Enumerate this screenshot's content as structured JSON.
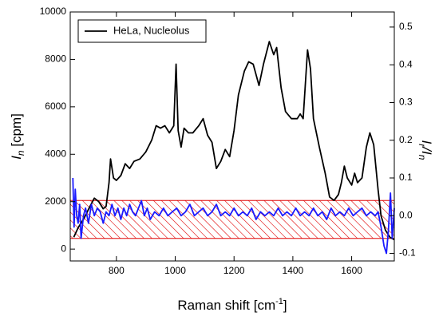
{
  "chart_data": {
    "type": "line",
    "x_label": [
      "Raman shift [cm",
      "-1",
      "]"
    ],
    "y_label": [
      "I",
      "n",
      " [cpm]"
    ],
    "y2_label": [
      "I",
      "r",
      "/I",
      "n"
    ],
    "xlim": [
      643,
      1745
    ],
    "xticks": [
      800,
      1000,
      1200,
      1400,
      1600
    ],
    "ylim": [
      -500,
      10000
    ],
    "yticks": [
      0,
      2000,
      4000,
      6000,
      8000,
      10000
    ],
    "y2lim": [
      -0.12,
      0.54
    ],
    "y2ticks": [
      -0.1,
      {
        "value": 0,
        "label": "0.0"
      },
      0.1,
      0.2,
      0.3,
      0.4,
      0.5
    ],
    "band": {
      "ylim": [
        450,
        2050
      ],
      "color": "#e00000"
    },
    "legend": "upper left",
    "series": [
      {
        "name": "HeLa, Nucleolus",
        "color": "#000000",
        "x": [
          655,
          670,
          690,
          710,
          725,
          740,
          755,
          765,
          775,
          780,
          790,
          800,
          815,
          830,
          845,
          860,
          880,
          900,
          920,
          935,
          950,
          965,
          980,
          995,
          1003,
          1010,
          1020,
          1030,
          1045,
          1060,
          1080,
          1095,
          1110,
          1125,
          1140,
          1155,
          1170,
          1185,
          1200,
          1215,
          1235,
          1250,
          1265,
          1285,
          1300,
          1320,
          1335,
          1345,
          1360,
          1375,
          1395,
          1415,
          1425,
          1435,
          1450,
          1460,
          1470,
          1490,
          1510,
          1525,
          1540,
          1555,
          1565,
          1575,
          1585,
          1600,
          1610,
          1620,
          1635,
          1650,
          1662,
          1675,
          1690,
          1700,
          1715,
          1730,
          1745
        ],
        "values": [
          500,
          900,
          1300,
          1800,
          2150,
          2000,
          1700,
          1800,
          2800,
          3800,
          3000,
          2900,
          3100,
          3600,
          3400,
          3700,
          3800,
          4100,
          4600,
          5200,
          5100,
          5200,
          4900,
          5200,
          7800,
          5000,
          4300,
          5100,
          4900,
          4900,
          5200,
          5500,
          4800,
          4500,
          3400,
          3700,
          4200,
          3900,
          5000,
          6500,
          7500,
          7900,
          7800,
          6900,
          7800,
          8750,
          8200,
          8500,
          6800,
          5800,
          5500,
          5500,
          5700,
          5500,
          8400,
          7600,
          5500,
          4300,
          3200,
          2200,
          2050,
          2300,
          2800,
          3500,
          3000,
          2700,
          3200,
          2800,
          3000,
          4300,
          4900,
          4400,
          2500,
          1400,
          800,
          500,
          400
        ]
      },
      {
        "color": "#1a1aff",
        "axis": "y2",
        "x": [
          652,
          656,
          660,
          665,
          670,
          675,
          680,
          688,
          695,
          705,
          715,
          725,
          735,
          745,
          755,
          765,
          775,
          785,
          795,
          805,
          815,
          825,
          835,
          845,
          855,
          865,
          875,
          885,
          895,
          905,
          915,
          930,
          945,
          960,
          975,
          990,
          1005,
          1020,
          1035,
          1050,
          1065,
          1080,
          1095,
          1110,
          1125,
          1140,
          1155,
          1170,
          1185,
          1200,
          1215,
          1230,
          1245,
          1260,
          1275,
          1290,
          1305,
          1320,
          1335,
          1350,
          1365,
          1380,
          1395,
          1410,
          1425,
          1440,
          1455,
          1470,
          1485,
          1500,
          1515,
          1530,
          1545,
          1560,
          1575,
          1590,
          1605,
          1620,
          1635,
          1650,
          1665,
          1680,
          1690,
          1700,
          1710,
          1718,
          1725,
          1732,
          1738,
          1745
        ],
        "values": [
          0.1,
          -0.03,
          0.07,
          0.0,
          -0.02,
          0.03,
          -0.06,
          0.0,
          0.02,
          -0.02,
          0.03,
          0.0,
          0.02,
          0.01,
          -0.02,
          0.01,
          0.0,
          0.03,
          0.0,
          0.02,
          -0.01,
          0.02,
          0.0,
          0.03,
          0.01,
          0.0,
          0.02,
          0.04,
          0.0,
          0.02,
          -0.01,
          0.01,
          0.0,
          0.02,
          0.0,
          0.01,
          0.02,
          0.0,
          0.01,
          0.03,
          0.0,
          0.01,
          0.02,
          0.0,
          0.01,
          0.03,
          0.0,
          0.01,
          0.0,
          0.02,
          0.0,
          0.01,
          0.0,
          0.02,
          -0.01,
          0.01,
          0.0,
          0.01,
          0.0,
          0.02,
          0.0,
          0.01,
          0.0,
          0.02,
          0.0,
          0.01,
          0.0,
          0.02,
          0.0,
          0.01,
          -0.01,
          0.02,
          0.0,
          0.01,
          0.0,
          0.02,
          0.0,
          0.01,
          0.02,
          0.0,
          0.01,
          0.0,
          0.01,
          -0.03,
          -0.08,
          -0.1,
          -0.04,
          0.06,
          -0.06,
          0.02
        ]
      }
    ]
  }
}
